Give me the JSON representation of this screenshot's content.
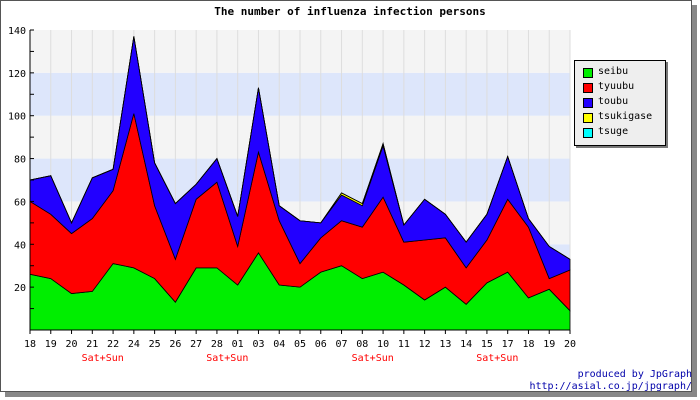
{
  "chart_data": {
    "type": "area",
    "stacked": true,
    "title": "The number of influenza infection persons",
    "xlabel": "",
    "ylabel": "",
    "ylim": [
      0,
      140
    ],
    "yticks": [
      20,
      40,
      60,
      80,
      100,
      120,
      140
    ],
    "categories": [
      "18",
      "19",
      "20",
      "21",
      "22",
      "24",
      "25",
      "26",
      "27",
      "28",
      "01",
      "03",
      "04",
      "05",
      "06",
      "07",
      "08",
      "10",
      "11",
      "12",
      "13",
      "14",
      "15",
      "17",
      "18",
      "19",
      "20"
    ],
    "weekend_labels": [
      {
        "after": "21",
        "text": "Sat+Sun"
      },
      {
        "after": "28",
        "text": "Sat+Sun"
      },
      {
        "after": "08",
        "text": "Sat+Sun"
      },
      {
        "after": "15",
        "text": "Sat+Sun"
      }
    ],
    "bands": "alternating white / light blue every 20 units; vertical grid lines at each category",
    "legend_position": "right",
    "series": [
      {
        "name": "seibu",
        "color": "#00ee00",
        "values": [
          26,
          24,
          17,
          18,
          31,
          29,
          24,
          13,
          29,
          29,
          21,
          36,
          21,
          20,
          27,
          30,
          24,
          27,
          21,
          14,
          20,
          12,
          22,
          27,
          15,
          19,
          9
        ]
      },
      {
        "name": "tyuubu",
        "color": "#ff0000",
        "values": [
          34,
          30,
          28,
          34,
          34,
          72,
          34,
          20,
          32,
          40,
          18,
          47,
          30,
          11,
          16,
          21,
          24,
          35,
          20,
          28,
          23,
          17,
          20,
          34,
          33,
          5,
          19
        ]
      },
      {
        "name": "toubu",
        "color": "#2200ff",
        "values": [
          10,
          18,
          5,
          19,
          10,
          36,
          20,
          26,
          7,
          11,
          14,
          30,
          7,
          20,
          7,
          12,
          10,
          24,
          8,
          19,
          11,
          12,
          12,
          20,
          4,
          15,
          5
        ]
      },
      {
        "name": "tsukigase",
        "color": "#ffff00",
        "values": [
          0,
          0,
          0,
          0,
          0,
          0,
          0,
          0,
          0,
          0,
          0,
          0,
          0,
          0,
          0,
          1,
          1,
          1,
          0,
          0,
          0,
          0,
          0,
          0,
          0,
          0,
          0
        ]
      },
      {
        "name": "tsuge",
        "color": "#00ffff",
        "values": [
          0,
          0,
          0,
          0,
          0,
          0,
          0,
          0,
          0,
          0,
          0,
          0,
          0,
          0,
          0,
          0,
          0,
          0,
          0,
          0,
          0,
          0,
          0,
          0,
          0,
          0,
          0
        ]
      }
    ]
  },
  "credits": {
    "line1": "produced by JpGraph",
    "line2": "http://asial.co.jp/jpgraph/"
  }
}
